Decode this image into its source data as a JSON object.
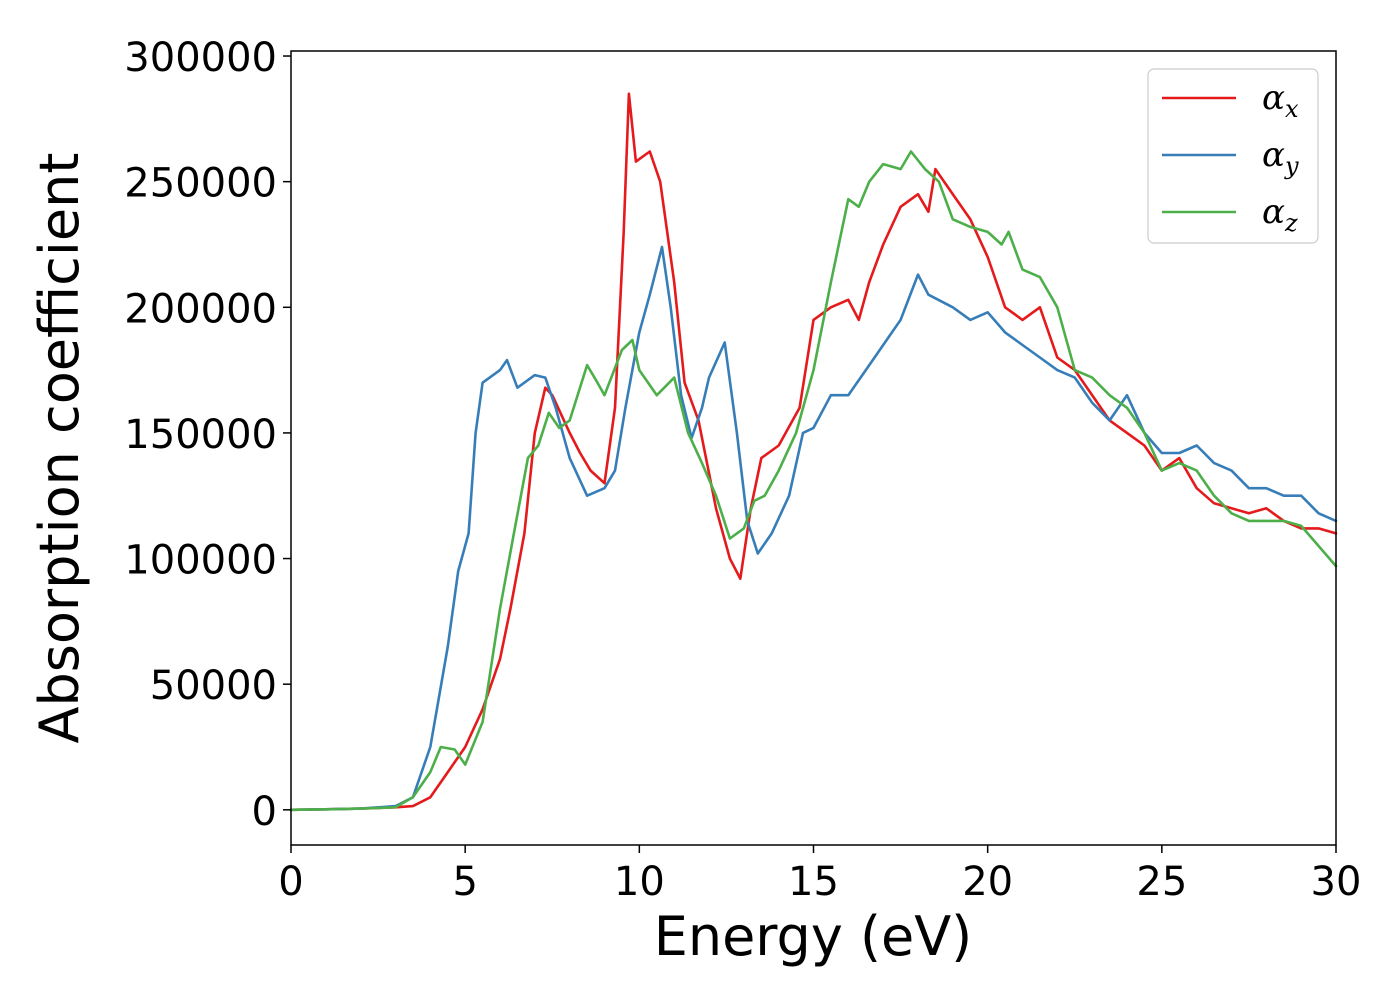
{
  "chart_data": {
    "type": "line",
    "xlabel": "Energy (eV)",
    "ylabel": "Absorption coefficient",
    "xlim": [
      0,
      30
    ],
    "ylim": [
      -14000,
      302000
    ],
    "x_ticks": [
      "0",
      "5",
      "10",
      "15",
      "20",
      "25",
      "30"
    ],
    "y_ticks": [
      "0",
      "50000",
      "100000",
      "150000",
      "200000",
      "250000",
      "300000"
    ],
    "x_tick_values": [
      0,
      5,
      10,
      15,
      20,
      25,
      30
    ],
    "y_tick_values": [
      0,
      50000,
      100000,
      150000,
      200000,
      250000,
      300000
    ],
    "grid": false,
    "legend_position": "top-right",
    "series": [
      {
        "name": "α",
        "subscript": "x",
        "color": "#e41a1c",
        "points": [
          [
            0,
            0
          ],
          [
            1,
            200
          ],
          [
            2,
            500
          ],
          [
            3,
            1000
          ],
          [
            3.5,
            1500
          ],
          [
            4,
            5000
          ],
          [
            4.5,
            15000
          ],
          [
            5,
            25000
          ],
          [
            5.5,
            40000
          ],
          [
            6,
            60000
          ],
          [
            6.3,
            80000
          ],
          [
            6.7,
            110000
          ],
          [
            7,
            150000
          ],
          [
            7.3,
            168000
          ],
          [
            7.5,
            165000
          ],
          [
            8,
            150000
          ],
          [
            8.3,
            142000
          ],
          [
            8.6,
            135000
          ],
          [
            9,
            130000
          ],
          [
            9.3,
            160000
          ],
          [
            9.55,
            230000
          ],
          [
            9.7,
            285000
          ],
          [
            9.9,
            258000
          ],
          [
            10.3,
            262000
          ],
          [
            10.6,
            250000
          ],
          [
            11,
            210000
          ],
          [
            11.3,
            170000
          ],
          [
            11.7,
            155000
          ],
          [
            12.2,
            120000
          ],
          [
            12.6,
            100000
          ],
          [
            12.9,
            92000
          ],
          [
            13.2,
            120000
          ],
          [
            13.5,
            140000
          ],
          [
            14,
            145000
          ],
          [
            14.6,
            160000
          ],
          [
            15,
            195000
          ],
          [
            15.5,
            200000
          ],
          [
            16,
            203000
          ],
          [
            16.3,
            195000
          ],
          [
            16.6,
            210000
          ],
          [
            17,
            225000
          ],
          [
            17.5,
            240000
          ],
          [
            18,
            245000
          ],
          [
            18.3,
            238000
          ],
          [
            18.5,
            255000
          ],
          [
            19,
            245000
          ],
          [
            19.5,
            235000
          ],
          [
            20,
            220000
          ],
          [
            20.5,
            200000
          ],
          [
            21,
            195000
          ],
          [
            21.5,
            200000
          ],
          [
            22,
            180000
          ],
          [
            22.5,
            175000
          ],
          [
            23,
            165000
          ],
          [
            23.5,
            155000
          ],
          [
            24,
            150000
          ],
          [
            24.5,
            145000
          ],
          [
            25,
            135000
          ],
          [
            25.5,
            140000
          ],
          [
            26,
            128000
          ],
          [
            26.5,
            122000
          ],
          [
            27,
            120000
          ],
          [
            27.5,
            118000
          ],
          [
            28,
            120000
          ],
          [
            28.5,
            115000
          ],
          [
            29,
            112000
          ],
          [
            29.5,
            112000
          ],
          [
            30,
            110000
          ]
        ]
      },
      {
        "name": "α",
        "subscript": "y",
        "color": "#377eb8",
        "points": [
          [
            0,
            0
          ],
          [
            1,
            200
          ],
          [
            2,
            500
          ],
          [
            3,
            1500
          ],
          [
            3.5,
            5000
          ],
          [
            4,
            25000
          ],
          [
            4.5,
            65000
          ],
          [
            4.8,
            95000
          ],
          [
            5.1,
            110000
          ],
          [
            5.3,
            150000
          ],
          [
            5.5,
            170000
          ],
          [
            6,
            175000
          ],
          [
            6.2,
            179000
          ],
          [
            6.5,
            168000
          ],
          [
            7,
            173000
          ],
          [
            7.3,
            172000
          ],
          [
            7.6,
            160000
          ],
          [
            8,
            140000
          ],
          [
            8.5,
            125000
          ],
          [
            9,
            128000
          ],
          [
            9.3,
            135000
          ],
          [
            9.6,
            160000
          ],
          [
            10,
            190000
          ],
          [
            10.3,
            205000
          ],
          [
            10.65,
            224000
          ],
          [
            10.9,
            200000
          ],
          [
            11.2,
            165000
          ],
          [
            11.5,
            148000
          ],
          [
            11.8,
            160000
          ],
          [
            12,
            172000
          ],
          [
            12.45,
            186000
          ],
          [
            12.8,
            150000
          ],
          [
            13.1,
            115000
          ],
          [
            13.4,
            102000
          ],
          [
            13.8,
            110000
          ],
          [
            14.3,
            125000
          ],
          [
            14.7,
            150000
          ],
          [
            15,
            152000
          ],
          [
            15.5,
            165000
          ],
          [
            16,
            165000
          ],
          [
            16.5,
            175000
          ],
          [
            17,
            185000
          ],
          [
            17.5,
            195000
          ],
          [
            18,
            213000
          ],
          [
            18.3,
            205000
          ],
          [
            19,
            200000
          ],
          [
            19.5,
            195000
          ],
          [
            20,
            198000
          ],
          [
            20.5,
            190000
          ],
          [
            21,
            185000
          ],
          [
            21.5,
            180000
          ],
          [
            22,
            175000
          ],
          [
            22.5,
            172000
          ],
          [
            23,
            162000
          ],
          [
            23.5,
            155000
          ],
          [
            24,
            165000
          ],
          [
            24.5,
            150000
          ],
          [
            25,
            142000
          ],
          [
            25.5,
            142000
          ],
          [
            26,
            145000
          ],
          [
            26.5,
            138000
          ],
          [
            27,
            135000
          ],
          [
            27.5,
            128000
          ],
          [
            28,
            128000
          ],
          [
            28.5,
            125000
          ],
          [
            29,
            125000
          ],
          [
            29.5,
            118000
          ],
          [
            30,
            115000
          ]
        ]
      },
      {
        "name": "α",
        "subscript": "z",
        "color": "#4daf4a",
        "points": [
          [
            0,
            0
          ],
          [
            1,
            200
          ],
          [
            2,
            500
          ],
          [
            3,
            1000
          ],
          [
            3.5,
            5000
          ],
          [
            4,
            15000
          ],
          [
            4.3,
            25000
          ],
          [
            4.7,
            24000
          ],
          [
            5,
            18000
          ],
          [
            5.5,
            35000
          ],
          [
            6,
            80000
          ],
          [
            6.4,
            110000
          ],
          [
            6.8,
            140000
          ],
          [
            7.1,
            145000
          ],
          [
            7.4,
            158000
          ],
          [
            7.7,
            152000
          ],
          [
            8,
            155000
          ],
          [
            8.5,
            177000
          ],
          [
            8.8,
            170000
          ],
          [
            9,
            165000
          ],
          [
            9.5,
            183000
          ],
          [
            9.8,
            187000
          ],
          [
            10,
            175000
          ],
          [
            10.5,
            165000
          ],
          [
            11,
            172000
          ],
          [
            11.4,
            150000
          ],
          [
            11.8,
            138000
          ],
          [
            12.2,
            125000
          ],
          [
            12.6,
            108000
          ],
          [
            13,
            112000
          ],
          [
            13.3,
            123000
          ],
          [
            13.6,
            125000
          ],
          [
            14,
            135000
          ],
          [
            14.5,
            150000
          ],
          [
            15,
            175000
          ],
          [
            15.5,
            210000
          ],
          [
            16,
            243000
          ],
          [
            16.3,
            240000
          ],
          [
            16.6,
            250000
          ],
          [
            17,
            257000
          ],
          [
            17.5,
            255000
          ],
          [
            17.8,
            262000
          ],
          [
            18.2,
            255000
          ],
          [
            18.6,
            250000
          ],
          [
            19,
            235000
          ],
          [
            19.5,
            232000
          ],
          [
            20,
            230000
          ],
          [
            20.4,
            225000
          ],
          [
            20.6,
            230000
          ],
          [
            21,
            215000
          ],
          [
            21.5,
            212000
          ],
          [
            22,
            200000
          ],
          [
            22.5,
            175000
          ],
          [
            23,
            172000
          ],
          [
            23.5,
            165000
          ],
          [
            24,
            160000
          ],
          [
            24.5,
            150000
          ],
          [
            25,
            135000
          ],
          [
            25.5,
            138000
          ],
          [
            26,
            135000
          ],
          [
            26.5,
            125000
          ],
          [
            27,
            118000
          ],
          [
            27.5,
            115000
          ],
          [
            28,
            115000
          ],
          [
            28.5,
            115000
          ],
          [
            29,
            113000
          ],
          [
            29.5,
            105000
          ],
          [
            30,
            97000
          ]
        ]
      }
    ]
  }
}
